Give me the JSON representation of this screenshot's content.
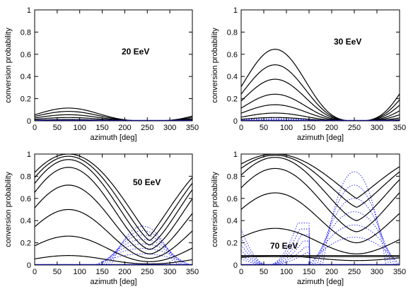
{
  "chart_data": [
    {
      "type": "line",
      "label": "20 EeV",
      "xlabel": "azimuth [deg]",
      "ylabel": "conversion probability",
      "xlim": [
        0,
        350
      ],
      "ylim": [
        0,
        1
      ],
      "xticks": [
        0,
        50,
        100,
        150,
        200,
        250,
        300,
        350
      ],
      "yticks": [
        0,
        0.2,
        0.4,
        0.6,
        0.8,
        1
      ],
      "series_style": [
        {
          "kind": "solid",
          "color": "#000000"
        },
        {
          "kind": "dotted",
          "color": "#1a1aff"
        }
      ],
      "solid_peaks": [
        0.115,
        0.085,
        0.055,
        0.03,
        0.012
      ],
      "dotted_peaks": [
        0.012,
        0.008,
        0.004
      ],
      "peak_azimuth_deg": 75,
      "zero_azimuth_deg": 255
    },
    {
      "type": "line",
      "label": "30 EeV",
      "xlabel": "azimuth [deg]",
      "ylabel": "conversion probability",
      "xlim": [
        0,
        350
      ],
      "ylim": [
        0,
        1
      ],
      "xticks": [
        0,
        50,
        100,
        150,
        200,
        250,
        300,
        350
      ],
      "yticks": [
        0,
        0.2,
        0.4,
        0.6,
        0.8,
        1
      ],
      "series_style": [
        {
          "kind": "solid",
          "color": "#000000"
        },
        {
          "kind": "dotted",
          "color": "#1a1aff"
        }
      ],
      "solid_peaks": [
        0.645,
        0.505,
        0.375,
        0.24,
        0.145,
        0.07,
        0.03
      ],
      "dotted_peaks": [
        0.02,
        0.012,
        0.006
      ],
      "peak_azimuth_deg": 75,
      "zero_azimuth_deg": 255
    },
    {
      "type": "line",
      "label": "50 EeV",
      "xlabel": "azimuth [deg]",
      "ylabel": "conversion probability",
      "xlim": [
        0,
        350
      ],
      "ylim": [
        0,
        1
      ],
      "xticks": [
        0,
        50,
        100,
        150,
        200,
        250,
        300,
        350
      ],
      "yticks": [
        0,
        0.2,
        0.4,
        0.6,
        0.8,
        1
      ],
      "series_style": [
        {
          "kind": "solid",
          "color": "#000000"
        },
        {
          "kind": "dotted",
          "color": "#1a1aff"
        }
      ],
      "solid_curves": [
        {
          "max": 1.0,
          "min": 0.26
        },
        {
          "max": 0.98,
          "min": 0.22
        },
        {
          "max": 0.95,
          "min": 0.18
        },
        {
          "max": 0.88,
          "min": 0.14
        },
        {
          "max": 0.72,
          "min": 0.1
        },
        {
          "max": 0.5,
          "min": 0.06
        },
        {
          "max": 0.26,
          "min": 0.03
        },
        {
          "max": 0.085,
          "min": 0.01
        }
      ],
      "dotted_peaks": [
        0.35,
        0.31,
        0.27,
        0.23,
        0.19,
        0.15,
        0.1
      ],
      "dotted_azimuth_deg": 240,
      "peak_azimuth_deg": 75,
      "min_azimuth_deg": 255
    },
    {
      "type": "line",
      "label": "70 EeV",
      "xlabel": "azimuth [deg]",
      "ylabel": "conversion probability",
      "xlim": [
        0,
        350
      ],
      "ylim": [
        0,
        1
      ],
      "xticks": [
        0,
        50,
        100,
        150,
        200,
        250,
        300,
        350
      ],
      "yticks": [
        0,
        0.2,
        0.4,
        0.6,
        0.8,
        1
      ],
      "series_style": [
        {
          "kind": "solid",
          "color": "#000000"
        },
        {
          "kind": "dotted",
          "color": "#1a1aff"
        }
      ],
      "solid_curves": [
        {
          "max": 1.0,
          "min": 0.6
        },
        {
          "max": 0.99,
          "min": 0.52
        },
        {
          "max": 0.97,
          "min": 0.4
        },
        {
          "max": 0.87,
          "min": 0.3
        },
        {
          "max": 0.65,
          "min": 0.2
        },
        {
          "max": 0.33,
          "min": 0.1
        },
        {
          "max": 0.085,
          "min": 0.04
        }
      ],
      "flat_levels": [
        0.085,
        0.075
      ],
      "dotted_peaks": [
        0.84,
        0.72,
        0.6,
        0.48,
        0.36,
        0.25
      ],
      "dotted_azimuth_deg": 250,
      "peak_azimuth_deg": 75,
      "min_azimuth_deg": 255
    }
  ]
}
